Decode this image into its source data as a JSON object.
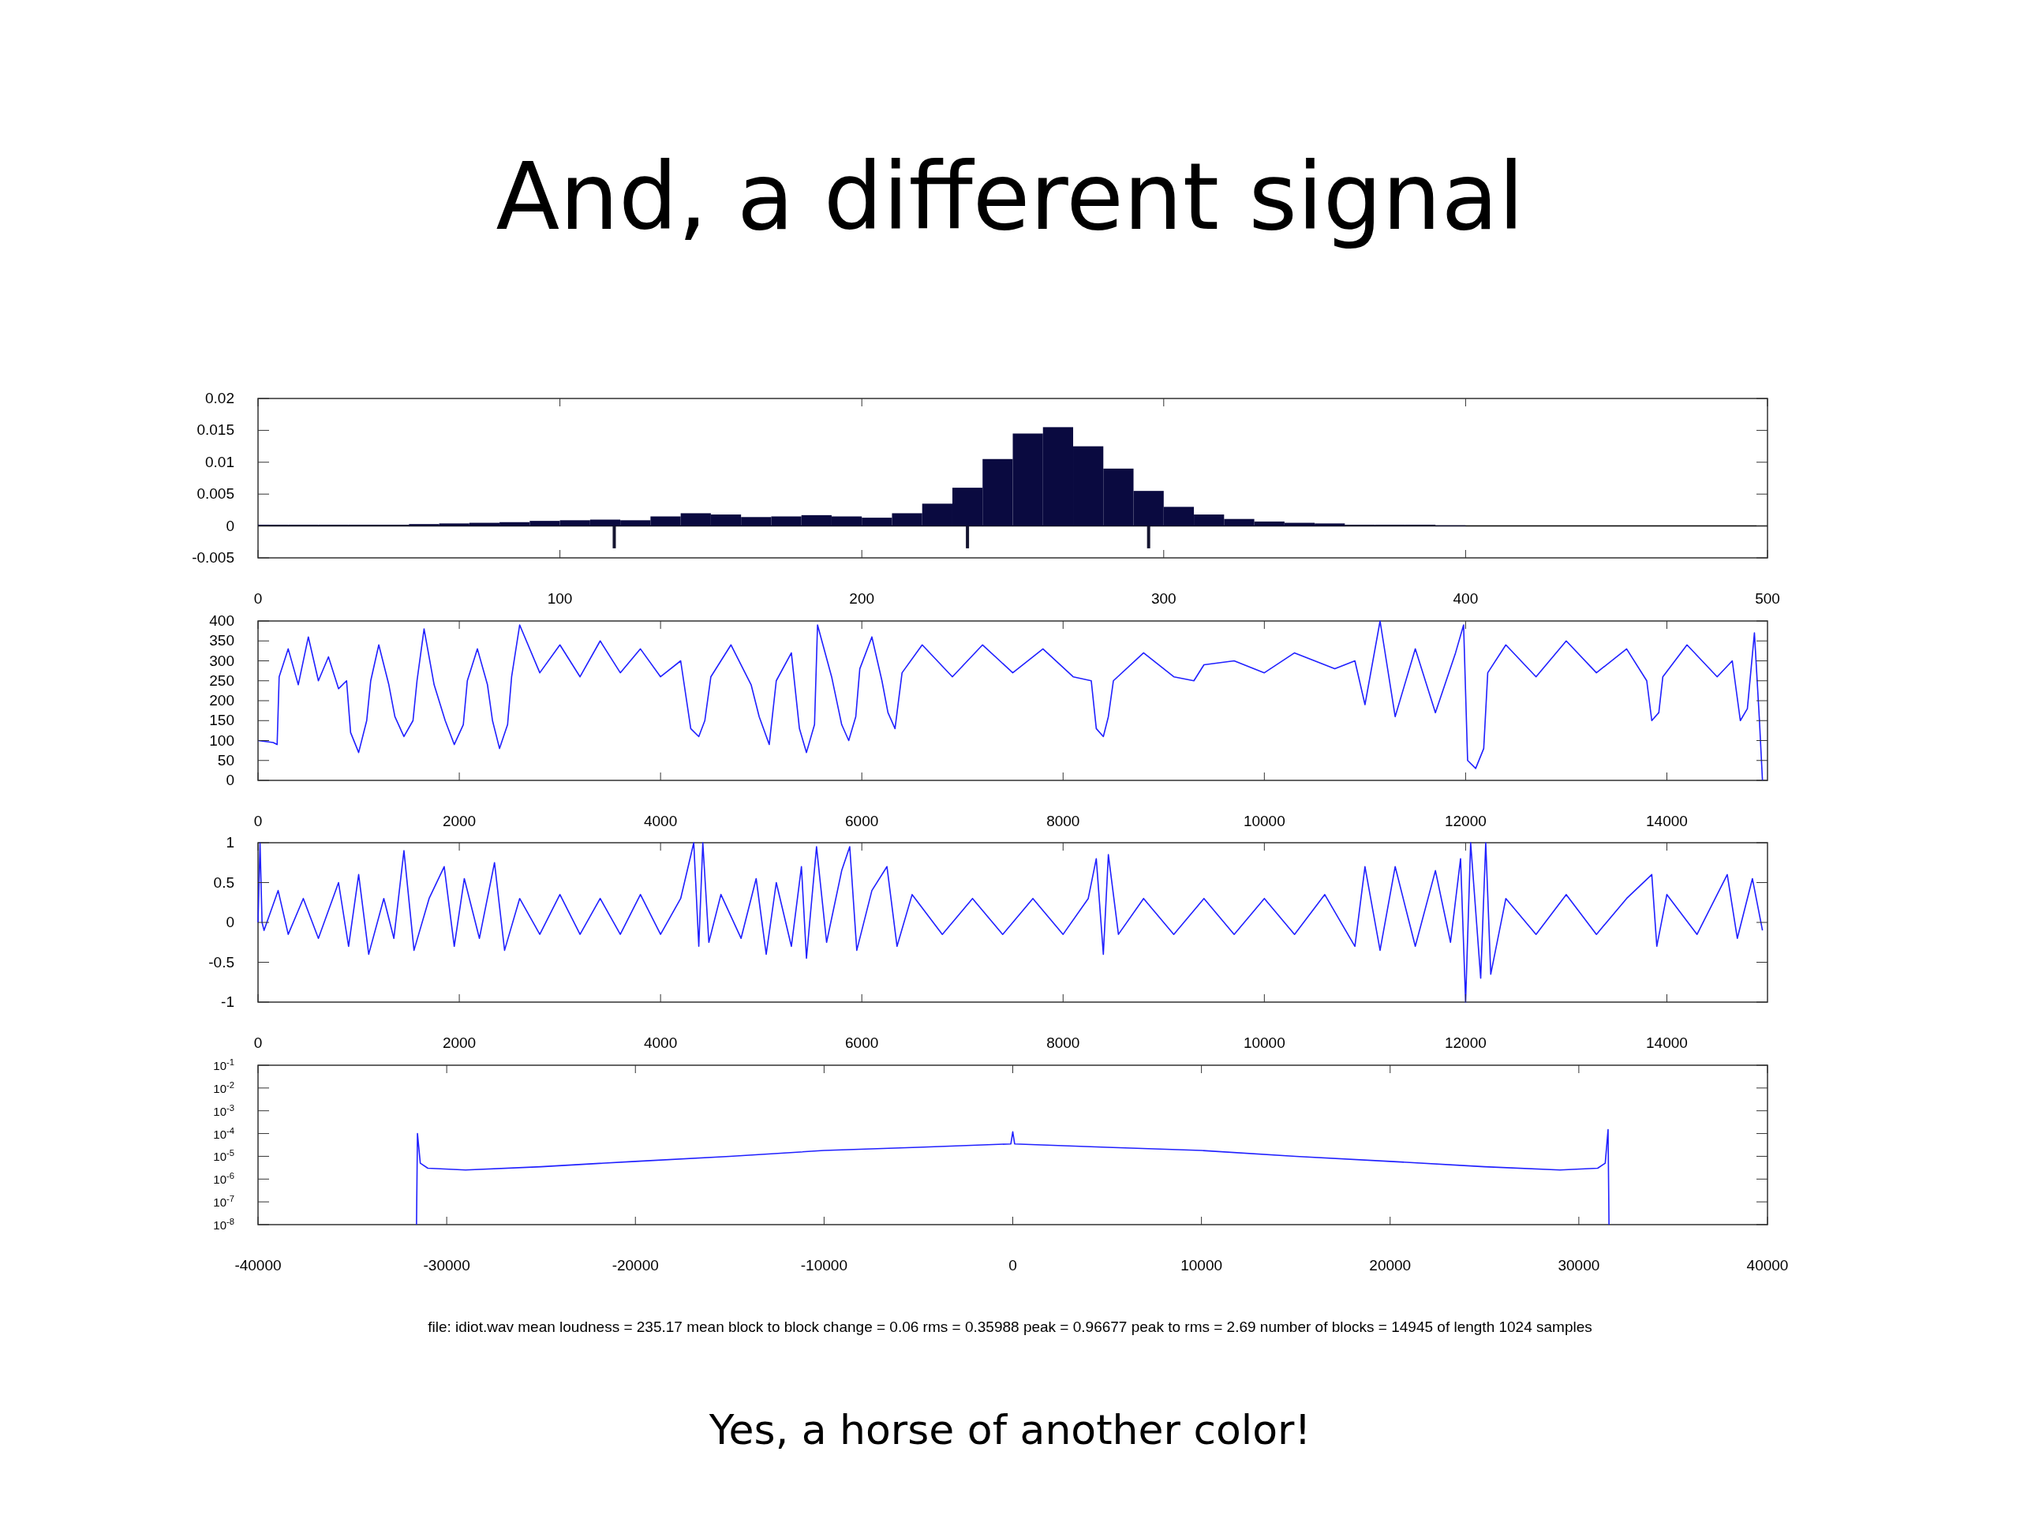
{
  "chart_data": [
    {
      "type": "histogram",
      "title": "And, a different signal",
      "color": "#0a0a40",
      "bins": [
        0,
        10,
        20,
        30,
        40,
        50,
        60,
        70,
        80,
        90,
        100,
        110,
        120,
        130,
        140,
        150,
        160,
        170,
        180,
        190,
        200,
        210,
        220,
        230,
        240,
        250,
        260,
        270,
        280,
        290,
        300,
        310,
        320,
        330,
        340,
        350,
        360,
        370,
        380,
        390,
        400
      ],
      "values": [
        0.0002,
        0.0002,
        0.0002,
        0.0002,
        0.0002,
        0.0003,
        0.0004,
        0.0005,
        0.0006,
        0.0008,
        0.0009,
        0.001,
        0.0009,
        0.0015,
        0.002,
        0.0018,
        0.0014,
        0.0015,
        0.0017,
        0.0015,
        0.0013,
        0.002,
        0.0035,
        0.006,
        0.0105,
        0.0145,
        0.0155,
        0.0125,
        0.009,
        0.0055,
        0.003,
        0.0018,
        0.0011,
        0.0007,
        0.0005,
        0.0004,
        0.0002,
        0.0002,
        0.0002,
        0.0001
      ],
      "series": [
        {
          "type": "bar",
          "x": [
            118,
            235,
            295
          ],
          "values": [
            -0.0035,
            -0.0035,
            -0.0035
          ],
          "color": "#141430"
        }
      ],
      "ref_lines": [
        {
          "axis": "y",
          "value": 0,
          "color": "#000000"
        }
      ],
      "xlim": [
        0,
        500
      ],
      "xticks": [
        0,
        100,
        200,
        300,
        400,
        500
      ],
      "ylim": [
        -0.005,
        0.02
      ],
      "yticks": [
        -0.005,
        0,
        0.005,
        0.01,
        0.015,
        0.02
      ]
    },
    {
      "type": "line",
      "color": "#2020ff",
      "x": [
        0,
        150,
        190,
        210,
        300,
        400,
        500,
        600,
        700,
        800,
        880,
        920,
        1000,
        1080,
        1120,
        1200,
        1300,
        1360,
        1450,
        1540,
        1580,
        1650,
        1750,
        1860,
        1950,
        2040,
        2080,
        2180,
        2280,
        2330,
        2400,
        2480,
        2520,
        2600,
        2800,
        3000,
        3200,
        3400,
        3600,
        3800,
        4000,
        4200,
        4300,
        4380,
        4440,
        4500,
        4700,
        4900,
        4980,
        5080,
        5150,
        5300,
        5380,
        5450,
        5530,
        5560,
        5700,
        5800,
        5870,
        5940,
        5980,
        6100,
        6200,
        6260,
        6330,
        6400,
        6600,
        6900,
        7200,
        7500,
        7800,
        8100,
        8280,
        8330,
        8400,
        8450,
        8500,
        8800,
        9100,
        9300,
        9400,
        9700,
        10000,
        10300,
        10700,
        10900,
        11000,
        11150,
        11300,
        11500,
        11700,
        11900,
        11980,
        12020,
        12100,
        12180,
        12220,
        12400,
        12700,
        13000,
        13300,
        13600,
        13800,
        13850,
        13920,
        13960,
        14200,
        14500,
        14650,
        14730,
        14800,
        14870,
        14920,
        14950
      ],
      "values": [
        100,
        95,
        90,
        260,
        330,
        240,
        360,
        250,
        310,
        230,
        250,
        120,
        70,
        150,
        250,
        340,
        240,
        160,
        110,
        150,
        250,
        380,
        240,
        150,
        90,
        140,
        250,
        330,
        240,
        150,
        80,
        140,
        260,
        390,
        270,
        340,
        260,
        350,
        270,
        330,
        260,
        300,
        130,
        110,
        150,
        260,
        340,
        240,
        160,
        90,
        250,
        320,
        130,
        70,
        140,
        390,
        260,
        140,
        100,
        160,
        280,
        360,
        250,
        170,
        130,
        270,
        340,
        260,
        340,
        270,
        330,
        260,
        250,
        130,
        110,
        160,
        250,
        320,
        260,
        250,
        290,
        300,
        270,
        320,
        280,
        300,
        190,
        400,
        160,
        330,
        170,
        320,
        390,
        50,
        30,
        80,
        270,
        340,
        260,
        350,
        270,
        330,
        250,
        150,
        170,
        260,
        340,
        260,
        300,
        150,
        180,
        370,
        150,
        0
      ],
      "xlim": [
        0,
        15000
      ],
      "xticks": [
        0,
        2000,
        4000,
        6000,
        8000,
        10000,
        12000,
        14000
      ],
      "ylim": [
        0,
        400
      ],
      "yticks": [
        0,
        50,
        100,
        150,
        200,
        250,
        300,
        350,
        400
      ]
    },
    {
      "type": "line",
      "color": "#2020ff",
      "x": [
        0,
        20,
        40,
        60,
        200,
        300,
        450,
        600,
        800,
        900,
        1000,
        1100,
        1250,
        1350,
        1450,
        1550,
        1700,
        1850,
        1950,
        2050,
        2200,
        2350,
        2450,
        2600,
        2800,
        3000,
        3200,
        3400,
        3600,
        3800,
        4000,
        4200,
        4330,
        4380,
        4420,
        4480,
        4600,
        4800,
        4950,
        5050,
        5150,
        5300,
        5400,
        5450,
        5550,
        5650,
        5800,
        5880,
        5950,
        6100,
        6250,
        6350,
        6500,
        6800,
        7100,
        7400,
        7700,
        8000,
        8250,
        8330,
        8400,
        8450,
        8550,
        8800,
        9100,
        9400,
        9700,
        10000,
        10300,
        10600,
        10900,
        11000,
        11150,
        11300,
        11500,
        11700,
        11850,
        11950,
        12000,
        12050,
        12150,
        12200,
        12250,
        12400,
        12700,
        13000,
        13300,
        13600,
        13850,
        13900,
        14000,
        14300,
        14600,
        14700,
        14850,
        14950
      ],
      "values": [
        0,
        1,
        0,
        -0.1,
        0.4,
        -0.15,
        0.3,
        -0.2,
        0.5,
        -0.3,
        0.6,
        -0.4,
        0.3,
        -0.2,
        0.9,
        -0.35,
        0.3,
        0.7,
        -0.3,
        0.55,
        -0.2,
        0.75,
        -0.35,
        0.3,
        -0.15,
        0.35,
        -0.15,
        0.3,
        -0.15,
        0.35,
        -0.15,
        0.3,
        1,
        -0.3,
        1,
        -0.25,
        0.35,
        -0.2,
        0.55,
        -0.4,
        0.5,
        -0.3,
        0.7,
        -0.45,
        0.95,
        -0.25,
        0.65,
        0.95,
        -0.35,
        0.4,
        0.7,
        -0.3,
        0.35,
        -0.15,
        0.3,
        -0.15,
        0.3,
        -0.15,
        0.3,
        0.8,
        -0.4,
        0.85,
        -0.15,
        0.3,
        -0.15,
        0.3,
        -0.15,
        0.3,
        -0.15,
        0.35,
        -0.3,
        0.7,
        -0.35,
        0.7,
        -0.3,
        0.65,
        -0.25,
        0.8,
        -1,
        1,
        -0.7,
        1,
        -0.65,
        0.3,
        -0.15,
        0.35,
        -0.15,
        0.3,
        0.6,
        -0.3,
        0.35,
        -0.15,
        0.6,
        -0.2,
        0.55,
        -0.1
      ],
      "xlim": [
        0,
        15000
      ],
      "xticks": [
        0,
        2000,
        4000,
        6000,
        8000,
        10000,
        12000,
        14000
      ],
      "ylim": [
        -1,
        1
      ],
      "yticks": [
        -1,
        -0.5,
        0,
        0.5,
        1
      ]
    },
    {
      "type": "line",
      "color": "#2020ff",
      "log": "y",
      "x": [
        -31600,
        -31550,
        -31400,
        -31000,
        -29000,
        -25000,
        -20000,
        -15000,
        -10000,
        -5000,
        -100,
        0,
        100,
        5000,
        10000,
        15000,
        20000,
        25000,
        29000,
        31000,
        31400,
        31550,
        31600
      ],
      "values": [
        1e-08,
        0.0001,
        5e-06,
        3e-06,
        2.5e-06,
        3.5e-06,
        6e-06,
        1e-05,
        1.8e-05,
        2.5e-05,
        3.5e-05,
        0.00012,
        3.5e-05,
        2.5e-05,
        1.8e-05,
        1e-05,
        6e-06,
        3.5e-06,
        2.5e-06,
        3e-06,
        5e-06,
        0.00015,
        1e-08
      ],
      "xlim": [
        -40000,
        40000
      ],
      "xticks": [
        -40000,
        -30000,
        -20000,
        -10000,
        0,
        10000,
        20000,
        30000,
        40000
      ],
      "ylim": [
        1e-08,
        0.1
      ],
      "yticks": [
        {
          "value": 1e-08,
          "label": "10$^{-8}$"
        },
        {
          "value": 1e-07,
          "label": "10$^{-7}$"
        },
        {
          "value": 1e-06,
          "label": "10$^{-6}$"
        },
        {
          "value": 1e-05,
          "label": "10$^{-5}$"
        },
        {
          "value": 0.0001,
          "label": "10$^{-4}$"
        },
        {
          "value": 0.001,
          "label": "10$^{-3}$"
        },
        {
          "value": 0.01,
          "label": "10$^{-2}$"
        },
        {
          "value": 0.1,
          "label": "10$^{-1}$"
        }
      ],
      "annotations": [
        "file: idiot.wav mean loudness = 235.17 mean block to block change =  0.06 rms =  0.35988 peak =  0.96677 peak to rms =  2.69 number of blocks = 14945 of length 1024 samples",
        "Yes, a horse of another color!"
      ]
    }
  ]
}
